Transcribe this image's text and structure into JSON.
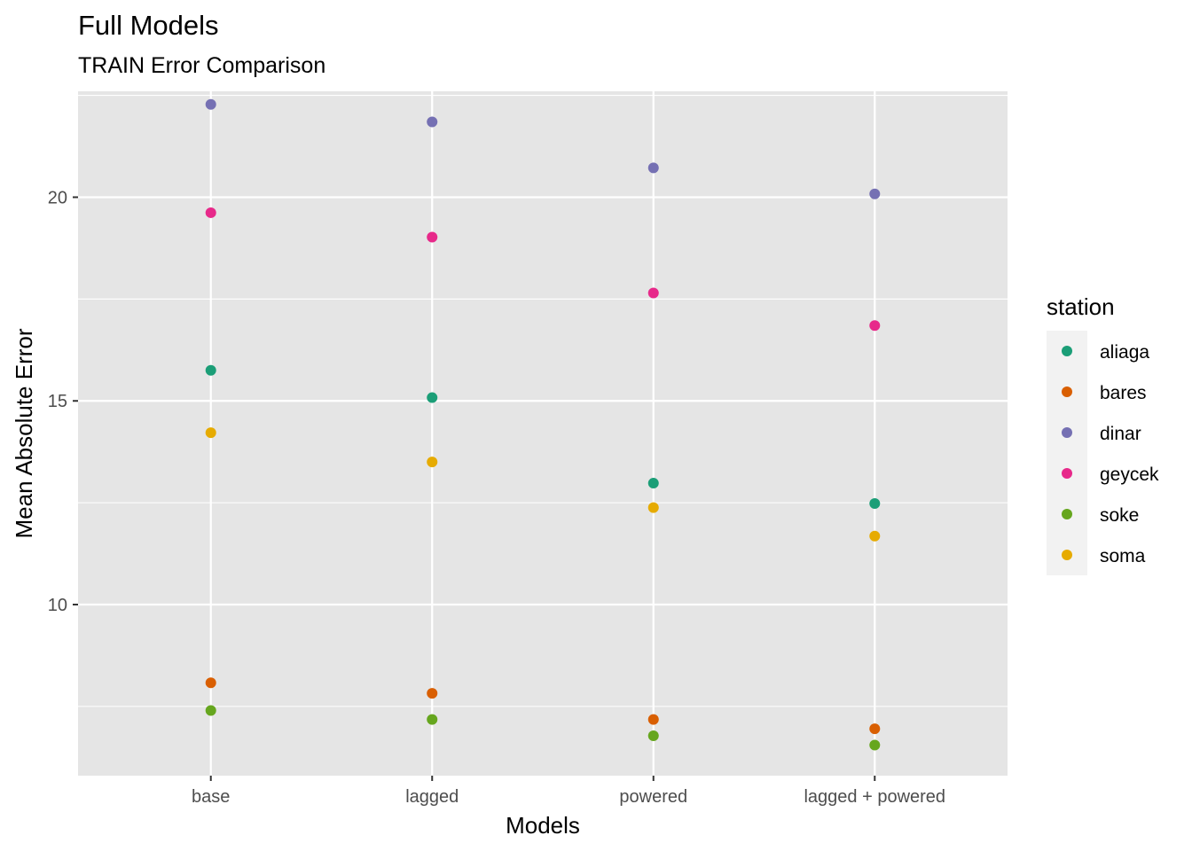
{
  "chart_data": {
    "type": "scatter",
    "title": "Full Models",
    "subtitle": "TRAIN Error Comparison",
    "xlabel": "Models",
    "ylabel": "Mean Absolute Error",
    "categories": [
      "base",
      "lagged",
      "powered",
      "lagged + powered"
    ],
    "ylim": [
      5.8,
      22.6
    ],
    "yticks": [
      10,
      15,
      20
    ],
    "grid": true,
    "legend": {
      "title": "station",
      "position": "right"
    },
    "series": [
      {
        "name": "aliaga",
        "color": "#1B9E77",
        "values": [
          15.75,
          15.08,
          12.98,
          12.48
        ]
      },
      {
        "name": "bares",
        "color": "#D95F02",
        "values": [
          8.08,
          7.82,
          7.18,
          6.95
        ]
      },
      {
        "name": "dinar",
        "color": "#7570B3",
        "values": [
          22.28,
          21.85,
          20.72,
          20.08
        ]
      },
      {
        "name": "geycek",
        "color": "#E7298A",
        "values": [
          19.62,
          19.02,
          17.65,
          16.85
        ]
      },
      {
        "name": "soke",
        "color": "#66A61E",
        "values": [
          7.4,
          7.18,
          6.78,
          6.55
        ]
      },
      {
        "name": "soma",
        "color": "#E6AB02",
        "values": [
          14.22,
          13.5,
          12.38,
          11.68
        ]
      }
    ]
  }
}
